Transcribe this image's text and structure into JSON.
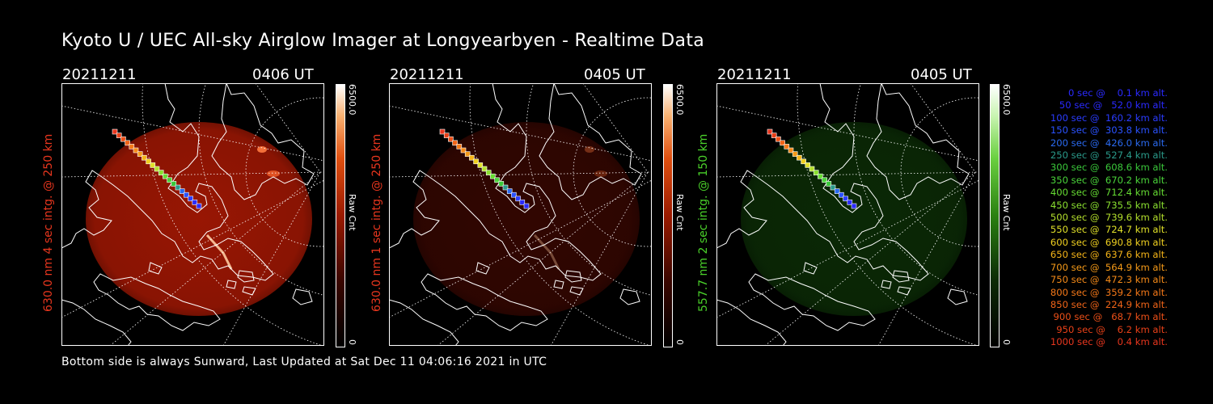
{
  "title": "Kyoto U / UEC All-sky Airglow Imager at Longyearbyen - Realtime Data",
  "footer": "Bottom side is always Sunward, Last Updated at Sat Dec 11 04:06:16 2021 in UTC",
  "panels": [
    {
      "date": "20211211",
      "time": "0406 UT",
      "side_label": "630.0 nm 4 sec intg. @ 250 km",
      "side_color": "#e8361e",
      "cbar_max": "6500.0",
      "cbar_min": "0",
      "cbar_unit": "Raw Cnt",
      "glow": "#b31a04",
      "glow_opacity": 0.85
    },
    {
      "date": "20211211",
      "time": "0405 UT",
      "side_label": "630.0 nm 1 sec intg. @ 250 km",
      "side_color": "#e8361e",
      "cbar_max": "6500.0",
      "cbar_min": "0",
      "cbar_unit": "Raw Cnt",
      "glow": "#5a0b02",
      "glow_opacity": 0.55
    },
    {
      "date": "20211211",
      "time": "0405 UT",
      "side_label": "557.7 nm 2 sec intg. @ 150 km",
      "side_color": "#4ad12a",
      "cbar_max": "6500.0",
      "cbar_min": "0",
      "cbar_unit": "Raw Cnt",
      "glow": "#0f3a08",
      "glow_opacity": 0.7
    }
  ],
  "legend": [
    {
      "text": "   0 sec @    0.1 km alt.",
      "color": "#2a2aff"
    },
    {
      "text": "  50 sec @   52.0 km alt.",
      "color": "#2a2aff"
    },
    {
      "text": " 100 sec @  160.2 km alt.",
      "color": "#2a3cff"
    },
    {
      "text": " 150 sec @  303.8 km alt.",
      "color": "#2a52ff"
    },
    {
      "text": " 200 sec @  426.0 km alt.",
      "color": "#2a6af0"
    },
    {
      "text": " 250 sec @  527.4 km alt.",
      "color": "#2a9a8a"
    },
    {
      "text": " 300 sec @  608.6 km alt.",
      "color": "#3ac83a"
    },
    {
      "text": " 350 sec @  670.2 km alt.",
      "color": "#4ad43a"
    },
    {
      "text": " 400 sec @  712.4 km alt.",
      "color": "#66dd33"
    },
    {
      "text": " 450 sec @  735.5 km alt.",
      "color": "#8ae030"
    },
    {
      "text": " 500 sec @  739.6 km alt.",
      "color": "#b4e02c"
    },
    {
      "text": " 550 sec @  724.7 km alt.",
      "color": "#e0e028"
    },
    {
      "text": " 600 sec @  690.8 km alt.",
      "color": "#f0d020"
    },
    {
      "text": " 650 sec @  637.6 km alt.",
      "color": "#f5b418"
    },
    {
      "text": " 700 sec @  564.9 km alt.",
      "color": "#f59a18"
    },
    {
      "text": " 750 sec @  472.3 km alt.",
      "color": "#f58a18"
    },
    {
      "text": " 800 sec @  359.2 km alt.",
      "color": "#f57818"
    },
    {
      "text": " 850 sec @  224.9 km alt.",
      "color": "#f06418"
    },
    {
      "text": " 900 sec @   68.7 km alt.",
      "color": "#ec5018"
    },
    {
      "text": " 950 sec @    6.2 km alt.",
      "color": "#e84018"
    },
    {
      "text": "1000 sec @    0.4 km alt.",
      "color": "#e8361e"
    }
  ]
}
